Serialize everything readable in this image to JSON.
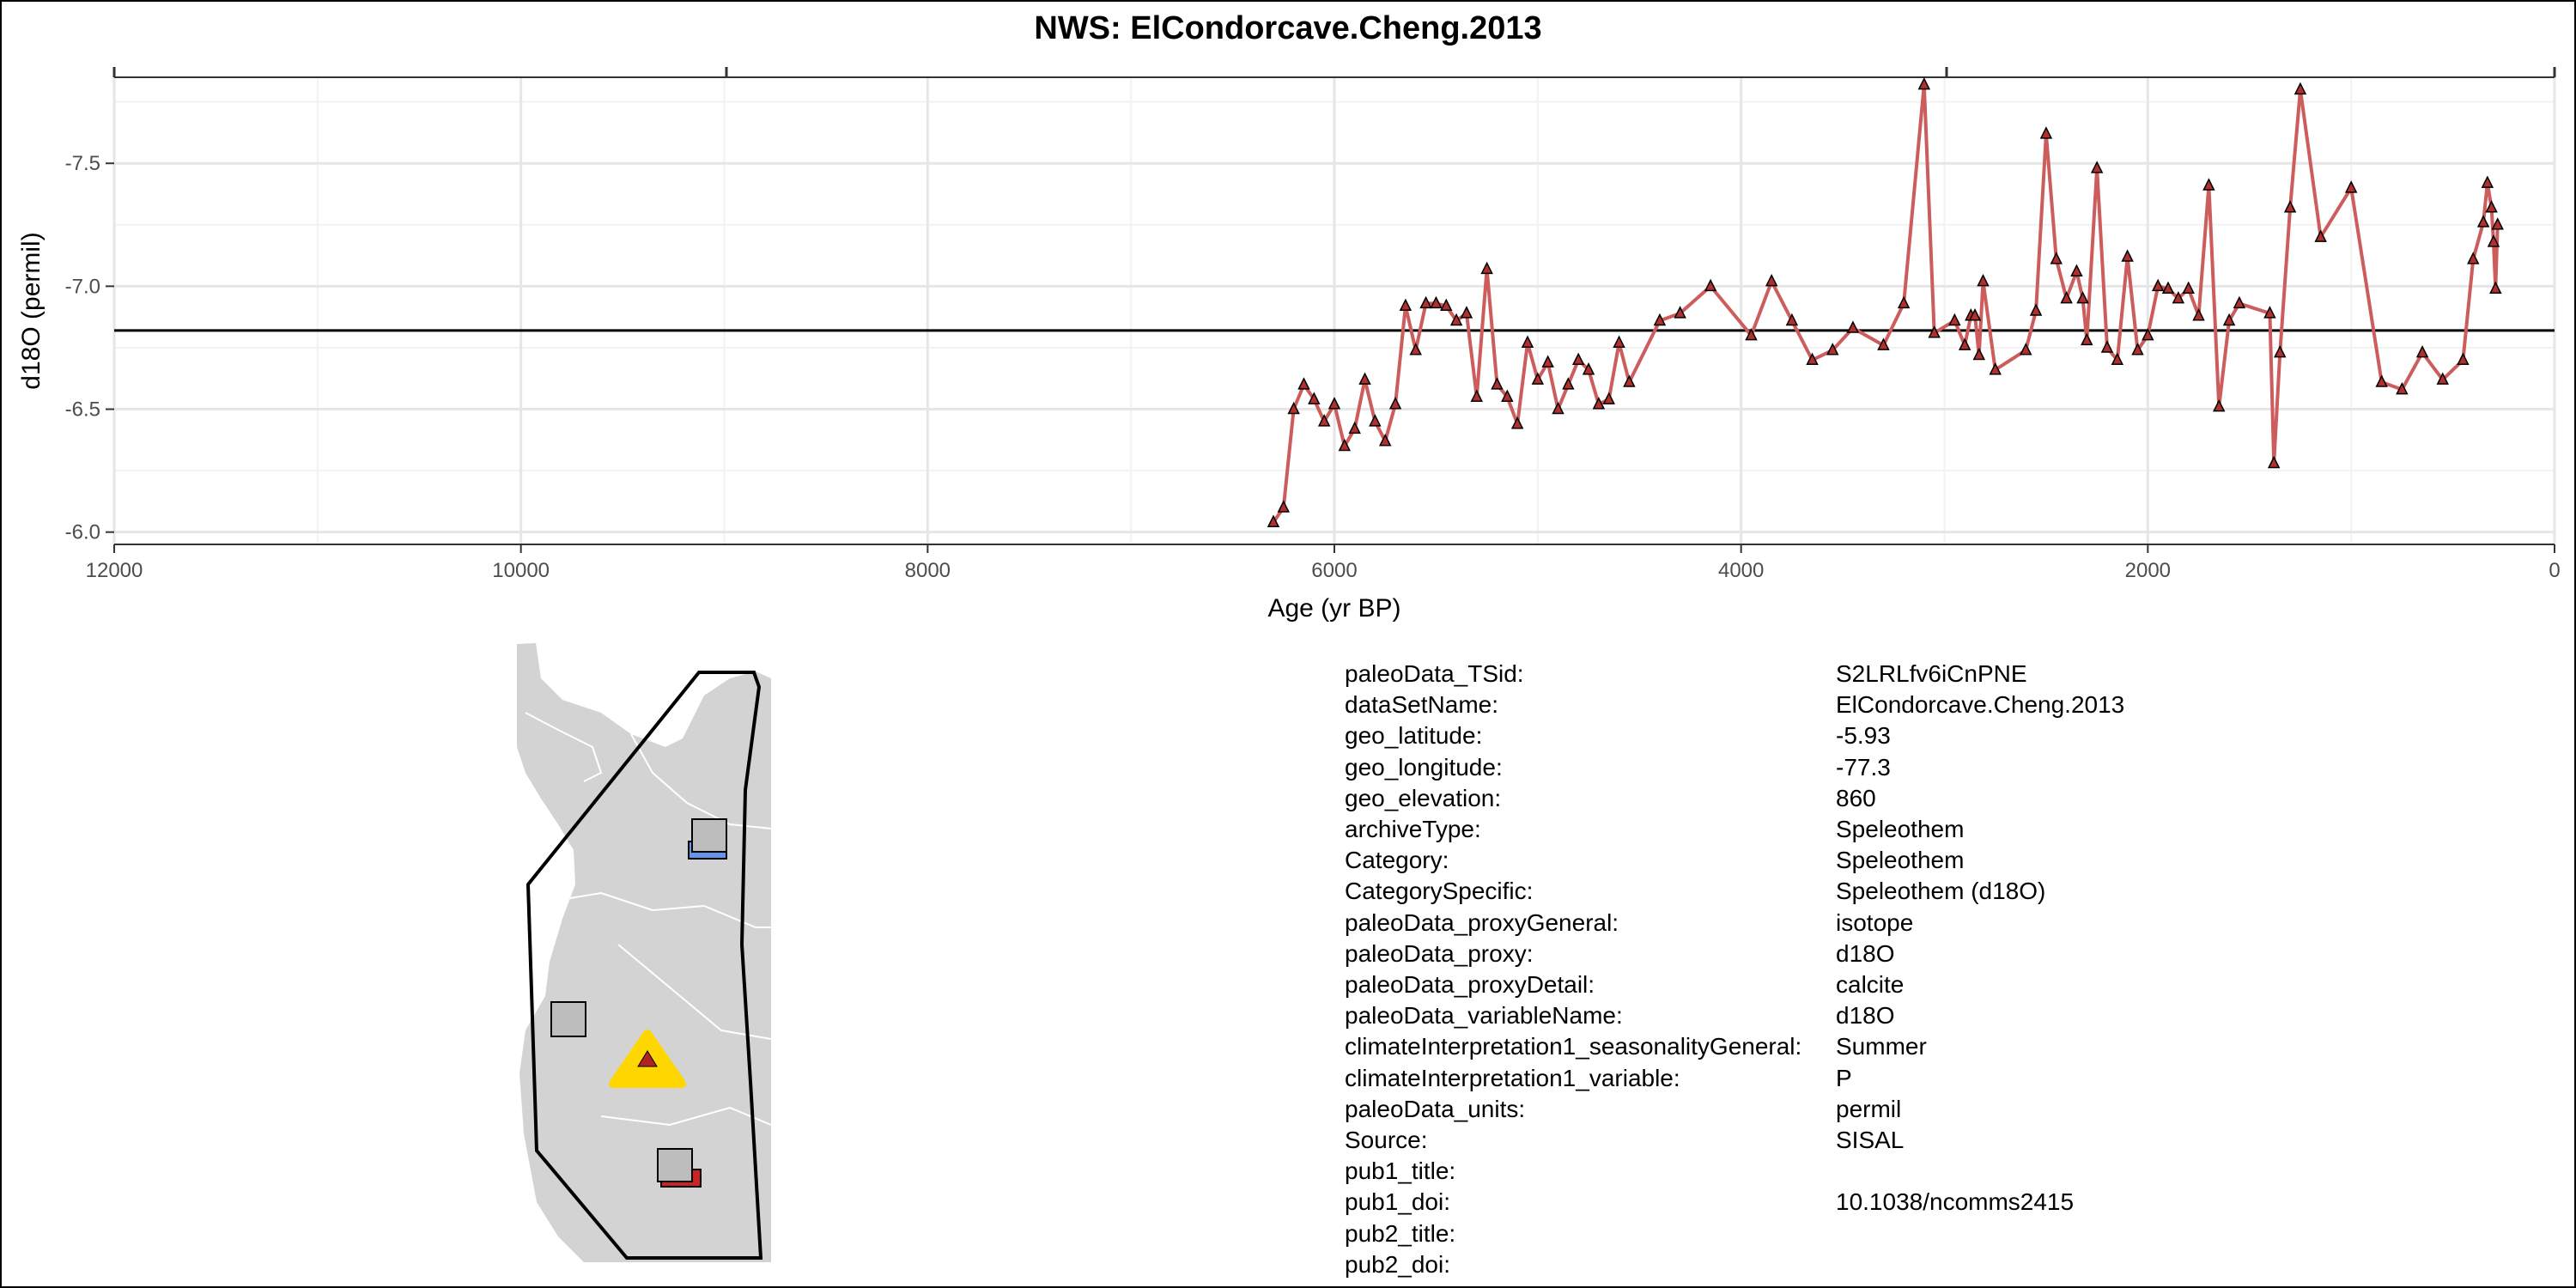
{
  "title": "NWS: ElCondorcave.Cheng.2013",
  "chart_data": {
    "type": "line",
    "title": "NWS: ElCondorcave.Cheng.2013",
    "xlabel": "Age (yr BP)",
    "ylabel": "d18O (permil)",
    "xlim": [
      12000,
      0
    ],
    "x_reversed": true,
    "ylim": [
      -5.95,
      -7.85
    ],
    "y_reversed": true,
    "xticks": [
      12000,
      10000,
      8000,
      6000,
      4000,
      2000,
      0
    ],
    "xtick_labels": [
      "12000",
      "10000",
      "8000",
      "6000",
      "4000",
      "2000",
      "0"
    ],
    "yticks": [
      -6.0,
      -6.5,
      -7.0,
      -7.5
    ],
    "ytick_labels": [
      "-6.0",
      "-6.5",
      "-7.0",
      "-7.5"
    ],
    "grid": true,
    "reference_line": -6.82,
    "series": [
      {
        "color": "#cd5c5c",
        "marker": "triangle",
        "x": [
          6300,
          6250,
          6200,
          6150,
          6100,
          6050,
          6000,
          5950,
          5900,
          5850,
          5800,
          5750,
          5700,
          5650,
          5600,
          5550,
          5500,
          5450,
          5400,
          5350,
          5300,
          5250,
          5200,
          5150,
          5100,
          5050,
          5000,
          4950,
          4900,
          4850,
          4800,
          4750,
          4700,
          4650,
          4600,
          4550,
          4400,
          4300,
          4150,
          3950,
          3850,
          3750,
          3650,
          3550,
          3450,
          3300,
          3200,
          3100,
          3050,
          2950,
          2900,
          2870,
          2850,
          2830,
          2810,
          2750,
          2600,
          2550,
          2500,
          2450,
          2400,
          2350,
          2320,
          2300,
          2250,
          2200,
          2150,
          2100,
          2050,
          2000,
          1950,
          1900,
          1850,
          1800,
          1750,
          1700,
          1650,
          1600,
          1550,
          1400,
          1380,
          1350,
          1300,
          1250,
          1150,
          1000,
          850,
          750,
          650,
          550,
          450,
          400,
          350,
          330,
          310,
          300,
          290,
          280
        ],
        "y": [
          -6.04,
          -6.1,
          -6.5,
          -6.6,
          -6.54,
          -6.45,
          -6.52,
          -6.35,
          -6.42,
          -6.62,
          -6.45,
          -6.37,
          -6.52,
          -6.92,
          -6.74,
          -6.93,
          -6.93,
          -6.92,
          -6.86,
          -6.89,
          -6.55,
          -7.07,
          -6.6,
          -6.55,
          -6.44,
          -6.77,
          -6.62,
          -6.69,
          -6.5,
          -6.6,
          -6.7,
          -6.66,
          -6.52,
          -6.54,
          -6.77,
          -6.61,
          -6.86,
          -6.89,
          -7.0,
          -6.8,
          -7.02,
          -6.86,
          -6.7,
          -6.74,
          -6.83,
          -6.76,
          -6.93,
          -7.82,
          -6.81,
          -6.86,
          -6.76,
          -6.88,
          -6.88,
          -6.72,
          -7.02,
          -6.66,
          -6.74,
          -6.9,
          -7.62,
          -7.11,
          -6.95,
          -7.06,
          -6.95,
          -6.78,
          -7.48,
          -6.75,
          -6.7,
          -7.12,
          -6.74,
          -6.8,
          -7.0,
          -6.99,
          -6.95,
          -6.99,
          -6.88,
          -7.41,
          -6.51,
          -6.86,
          -6.93,
          -6.89,
          -6.28,
          -6.73,
          -7.32,
          -7.8,
          -7.2,
          -7.4,
          -6.61,
          -6.58,
          -6.73,
          -6.62,
          -6.7,
          -7.11,
          -7.26,
          -7.42,
          -7.32,
          -7.18,
          -6.99,
          -7.25
        ]
      }
    ]
  },
  "map": {
    "site_marker_color": "#ffd700",
    "site_inner_color": "#b22222",
    "other_site_markers": [
      "gray-square-blue-bar",
      "gray-square",
      "gray-square-red-bar"
    ]
  },
  "metadata": [
    {
      "key": "paleoData_TSid:",
      "value": "S2LRLfv6iCnPNE"
    },
    {
      "key": "dataSetName:",
      "value": "ElCondorcave.Cheng.2013"
    },
    {
      "key": "geo_latitude:",
      "value": "-5.93"
    },
    {
      "key": "geo_longitude:",
      "value": "-77.3"
    },
    {
      "key": "geo_elevation:",
      "value": "860"
    },
    {
      "key": "archiveType:",
      "value": "Speleothem"
    },
    {
      "key": "Category:",
      "value": "Speleothem"
    },
    {
      "key": "CategorySpecific:",
      "value": "Speleothem (d18O)"
    },
    {
      "key": "paleoData_proxyGeneral:",
      "value": "isotope"
    },
    {
      "key": "paleoData_proxy:",
      "value": "d18O"
    },
    {
      "key": "paleoData_proxyDetail:",
      "value": "calcite"
    },
    {
      "key": "paleoData_variableName:",
      "value": "d18O"
    },
    {
      "key": "climateInterpretation1_seasonalityGeneral:",
      "value": "Summer"
    },
    {
      "key": "climateInterpretation1_variable:",
      "value": "P"
    },
    {
      "key": "paleoData_units:",
      "value": "permil"
    },
    {
      "key": "Source:",
      "value": "SISAL"
    },
    {
      "key": "pub1_title:",
      "value": ""
    },
    {
      "key": "pub1_doi:",
      "value": "10.1038/ncomms2415"
    },
    {
      "key": "pub2_title:",
      "value": ""
    },
    {
      "key": "pub2_doi:",
      "value": ""
    }
  ]
}
